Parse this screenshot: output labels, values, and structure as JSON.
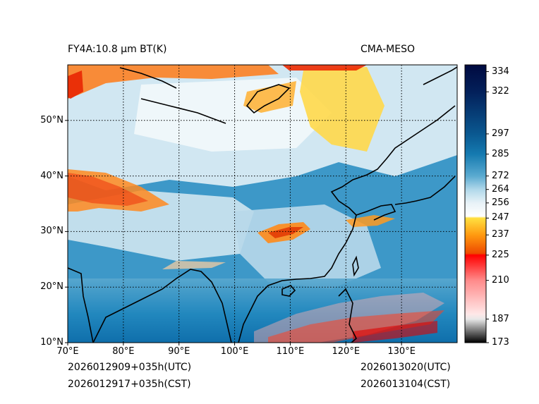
{
  "header": {
    "title_left": "FY4A:10.8 µm BT(K)",
    "title_right": "CMA-MESO"
  },
  "footer": {
    "init_utc": "2026012909+035h(UTC)",
    "init_cst": "2026012917+035h(CST)",
    "valid_utc": "2026013020(UTC)",
    "valid_cst": "2026013104(CST)"
  },
  "map": {
    "extent": {
      "lon_min": 70,
      "lon_max": 140,
      "lat_min": 10,
      "lat_max": 60
    },
    "lon_ticks": [
      {
        "value": 70,
        "label": "70°E"
      },
      {
        "value": 80,
        "label": "80°E"
      },
      {
        "value": 90,
        "label": "90°E"
      },
      {
        "value": 100,
        "label": "100°E"
      },
      {
        "value": 110,
        "label": "110°E"
      },
      {
        "value": 120,
        "label": "120°E"
      },
      {
        "value": 130,
        "label": "130°E"
      }
    ],
    "lat_ticks": [
      {
        "value": 50,
        "label": "50°N"
      },
      {
        "value": 40,
        "label": "40°N"
      },
      {
        "value": 30,
        "label": "30°N"
      },
      {
        "value": 20,
        "label": "20°N"
      },
      {
        "value": 10,
        "label": "10°N"
      }
    ]
  },
  "colorbar": {
    "min": 173,
    "max": 338,
    "ticks": [
      {
        "value": 334,
        "label": "334"
      },
      {
        "value": 322,
        "label": "322"
      },
      {
        "value": 297,
        "label": "297"
      },
      {
        "value": 285,
        "label": "285"
      },
      {
        "value": 272,
        "label": "272"
      },
      {
        "value": 264,
        "label": "264"
      },
      {
        "value": 256,
        "label": "256"
      },
      {
        "value": 247,
        "label": "247"
      },
      {
        "value": 237,
        "label": "237"
      },
      {
        "value": 225,
        "label": "225"
      },
      {
        "value": 210,
        "label": "210"
      },
      {
        "value": 187,
        "label": "187"
      },
      {
        "value": 173,
        "label": "173"
      }
    ],
    "stops": [
      {
        "value": 173,
        "color": "#000000"
      },
      {
        "value": 187,
        "color": "#e8e8e8"
      },
      {
        "value": 190,
        "color": "#ffe8e8"
      },
      {
        "value": 210,
        "color": "#ff8a8a"
      },
      {
        "value": 225,
        "color": "#ff0000"
      },
      {
        "value": 226,
        "color": "#ee4a00"
      },
      {
        "value": 237,
        "color": "#ff9a10"
      },
      {
        "value": 247,
        "color": "#ffe040"
      },
      {
        "value": 248,
        "color": "#ffffff"
      },
      {
        "value": 256,
        "color": "#e8f2f7"
      },
      {
        "value": 264,
        "color": "#b0d8ea"
      },
      {
        "value": 272,
        "color": "#5aaad0"
      },
      {
        "value": 285,
        "color": "#157ab0"
      },
      {
        "value": 297,
        "color": "#0a5890"
      },
      {
        "value": 322,
        "color": "#03205a"
      },
      {
        "value": 338,
        "color": "#000a40"
      }
    ]
  }
}
